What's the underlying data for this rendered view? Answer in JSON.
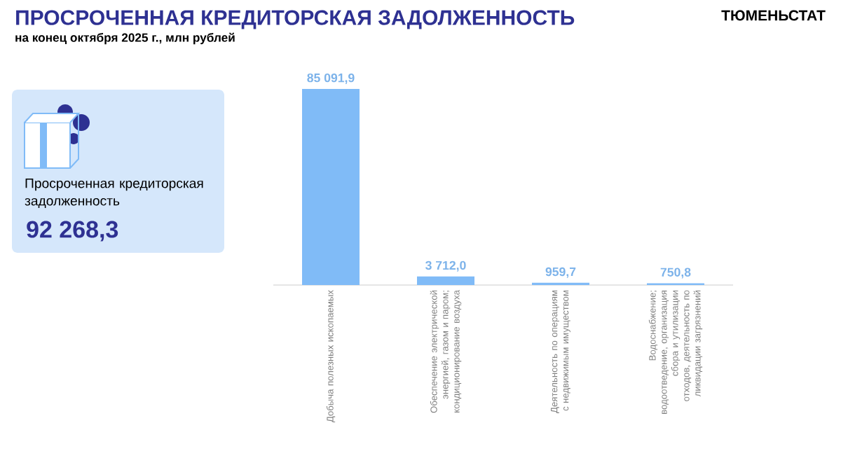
{
  "chart_data": {
    "type": "bar",
    "title": "ПРОСРОЧЕННАЯ КРЕДИТОРСКАЯ ЗАДОЛЖЕННОСТЬ",
    "subtitle": "на конец октября 2025 г., млн рублей",
    "categories": [
      "Добыча полезных ископаемых",
      "Обеспечение электрической энергией, газом и паром; кондиционирование воздуха",
      "Деятельность по операциям с недвижимым имуществом",
      "Водоснабжение; водоотведение, организация сбора и утилизации отходов, деятельность по ликвидации загрязнений"
    ],
    "values": [
      85091.9,
      3712.0,
      959.7,
      750.8
    ],
    "value_labels": [
      "85 091,9",
      "3 712,0",
      "959,7",
      "750,8"
    ],
    "color": "#80bbf7",
    "annotations": [
      "Просроченная кредиторская задолженность",
      "92 268,3",
      "ТЮМЕНЬСТАТ"
    ]
  }
}
